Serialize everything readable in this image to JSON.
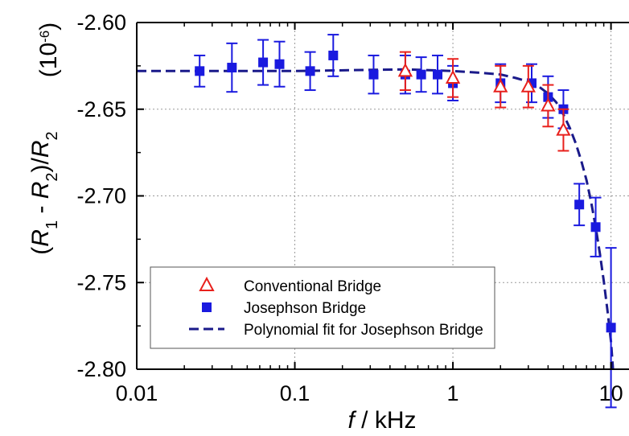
{
  "chart_data": {
    "type": "scatter",
    "xscale": "log",
    "xlim": [
      0.01,
      13
    ],
    "ylim": [
      -2.8,
      -2.6
    ],
    "grid": true,
    "legend_position": "bottom-left",
    "xlabel": {
      "italic": "f",
      "rest": " / kHz"
    },
    "ylabel": {
      "open": "(",
      "r1": "R",
      "r1_sub": "1",
      "minus": " - ",
      "r2": "R",
      "r2_sub": "2",
      "close": ")/",
      "r3": "R",
      "r3_sub": "2"
    },
    "unit_label": {
      "open": "(10",
      "exp": "-6",
      "close": ")"
    },
    "x_ticks": [
      {
        "value": 0.01,
        "label": "0.01"
      },
      {
        "value": 0.1,
        "label": "0.1"
      },
      {
        "value": 1,
        "label": "1"
      },
      {
        "value": 10,
        "label": "10"
      }
    ],
    "y_ticks": [
      {
        "value": -2.6,
        "label": "-2.60"
      },
      {
        "value": -2.65,
        "label": "-2.65"
      },
      {
        "value": -2.7,
        "label": "-2.70"
      },
      {
        "value": -2.75,
        "label": "-2.75"
      },
      {
        "value": -2.8,
        "label": "-2.80"
      }
    ],
    "series": [
      {
        "name": "Conventional Bridge",
        "marker": "open-triangle",
        "color": "#e8201c",
        "points": [
          {
            "x": 0.5,
            "y": -2.628,
            "err": 0.011
          },
          {
            "x": 1.0,
            "y": -2.632,
            "err": 0.011
          },
          {
            "x": 2.0,
            "y": -2.637,
            "err": 0.012
          },
          {
            "x": 3.0,
            "y": -2.637,
            "err": 0.012
          },
          {
            "x": 4.0,
            "y": -2.648,
            "err": 0.012
          },
          {
            "x": 5.0,
            "y": -2.662,
            "err": 0.012
          }
        ]
      },
      {
        "name": "Josephson Bridge",
        "marker": "filled-square",
        "color": "#1a1adf",
        "points": [
          {
            "x": 0.025,
            "y": -2.628,
            "err": 0.009
          },
          {
            "x": 0.04,
            "y": -2.626,
            "err": 0.014
          },
          {
            "x": 0.063,
            "y": -2.623,
            "err": 0.013
          },
          {
            "x": 0.08,
            "y": -2.624,
            "err": 0.013
          },
          {
            "x": 0.125,
            "y": -2.628,
            "err": 0.011
          },
          {
            "x": 0.175,
            "y": -2.619,
            "err": 0.012
          },
          {
            "x": 0.315,
            "y": -2.63,
            "err": 0.011
          },
          {
            "x": 0.5,
            "y": -2.63,
            "err": 0.011
          },
          {
            "x": 0.63,
            "y": -2.63,
            "err": 0.01
          },
          {
            "x": 0.8,
            "y": -2.63,
            "err": 0.011
          },
          {
            "x": 1.0,
            "y": -2.635,
            "err": 0.01
          },
          {
            "x": 2.0,
            "y": -2.635,
            "err": 0.011
          },
          {
            "x": 3.15,
            "y": -2.635,
            "err": 0.011
          },
          {
            "x": 4.0,
            "y": -2.643,
            "err": 0.012
          },
          {
            "x": 5.0,
            "y": -2.65,
            "err": 0.011
          },
          {
            "x": 6.3,
            "y": -2.705,
            "err": 0.012
          },
          {
            "x": 8.0,
            "y": -2.718,
            "err": 0.017
          },
          {
            "x": 10.0,
            "y": -2.776,
            "err": 0.046
          }
        ]
      },
      {
        "name": "Polynomial fit for Josephson Bridge",
        "marker": "dashed-line",
        "color": "#1a1a8a",
        "x": [
          0.01,
          0.1,
          0.5,
          1.0,
          1.5,
          2.0,
          2.5,
          3.0,
          3.5,
          4.0,
          4.5,
          5.0,
          5.5,
          6.0,
          6.5,
          7.0,
          7.5,
          8.0,
          8.5,
          9.0,
          9.5,
          10.0,
          10.3
        ],
        "y": [
          -2.628,
          -2.628,
          -2.627,
          -2.628,
          -2.629,
          -2.63,
          -2.632,
          -2.634,
          -2.637,
          -2.641,
          -2.646,
          -2.653,
          -2.661,
          -2.67,
          -2.68,
          -2.691,
          -2.704,
          -2.718,
          -2.733,
          -2.749,
          -2.766,
          -2.784,
          -2.8
        ]
      }
    ]
  }
}
